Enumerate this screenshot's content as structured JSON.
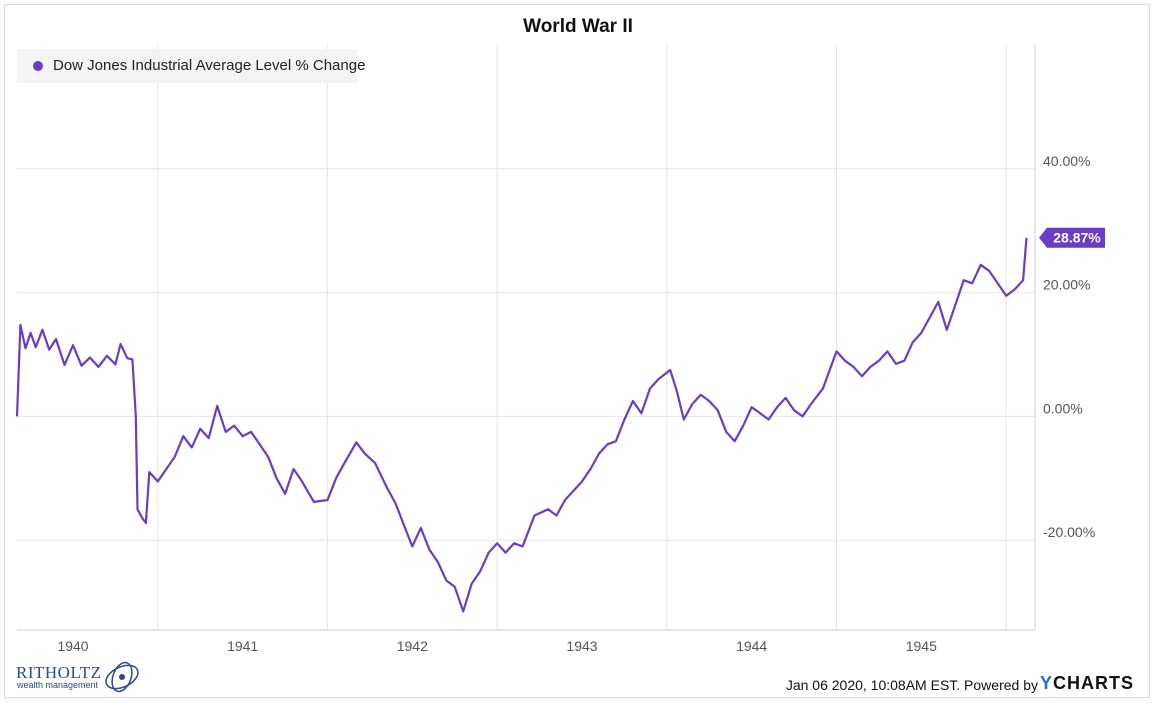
{
  "title": "World War II",
  "legend": {
    "label": "Dow Jones Industrial Average Level % Change"
  },
  "footer": {
    "brand_name": "RITHOLTZ",
    "brand_sub": "wealth management",
    "credit": "Jan 06 2020, 10:08AM EST. Powered by",
    "ycharts_y": "Y",
    "ycharts_rest": "CHARTS"
  },
  "colors": {
    "series": "#6a3cc7",
    "grid": "#e6e6e6",
    "axis_text": "#555555"
  },
  "chart_data": {
    "type": "line",
    "title": "World War II",
    "series": [
      {
        "name": "Dow Jones Industrial Average Level % Change",
        "color": "#6a3cc7",
        "last_value_label": "28.87%",
        "points": [
          [
            1939.67,
            0.0
          ],
          [
            1939.69,
            14.8
          ],
          [
            1939.72,
            11.0
          ],
          [
            1939.75,
            13.5
          ],
          [
            1939.78,
            11.2
          ],
          [
            1939.82,
            14.0
          ],
          [
            1939.86,
            10.8
          ],
          [
            1939.9,
            12.5
          ],
          [
            1939.95,
            8.3
          ],
          [
            1940.0,
            11.5
          ],
          [
            1940.05,
            8.2
          ],
          [
            1940.1,
            9.5
          ],
          [
            1940.15,
            8.0
          ],
          [
            1940.2,
            9.8
          ],
          [
            1940.25,
            8.4
          ],
          [
            1940.28,
            11.7
          ],
          [
            1940.32,
            9.4
          ],
          [
            1940.35,
            9.2
          ],
          [
            1940.37,
            0.0
          ],
          [
            1940.38,
            -15.0
          ],
          [
            1940.41,
            -16.5
          ],
          [
            1940.43,
            -17.2
          ],
          [
            1940.45,
            -9.0
          ],
          [
            1940.5,
            -10.5
          ],
          [
            1940.55,
            -8.5
          ],
          [
            1940.6,
            -6.5
          ],
          [
            1940.65,
            -3.2
          ],
          [
            1940.7,
            -5.0
          ],
          [
            1940.75,
            -2.0
          ],
          [
            1940.8,
            -3.5
          ],
          [
            1940.85,
            1.7
          ],
          [
            1940.9,
            -2.5
          ],
          [
            1940.95,
            -1.5
          ],
          [
            1941.0,
            -3.2
          ],
          [
            1941.05,
            -2.5
          ],
          [
            1941.1,
            -4.5
          ],
          [
            1941.15,
            -6.5
          ],
          [
            1941.2,
            -10.0
          ],
          [
            1941.25,
            -12.5
          ],
          [
            1941.3,
            -8.5
          ],
          [
            1941.35,
            -10.5
          ],
          [
            1941.42,
            -13.8
          ],
          [
            1941.5,
            -13.5
          ],
          [
            1941.55,
            -10.0
          ],
          [
            1941.6,
            -7.5
          ],
          [
            1941.67,
            -4.2
          ],
          [
            1941.72,
            -6.0
          ],
          [
            1941.78,
            -7.5
          ],
          [
            1941.85,
            -11.5
          ],
          [
            1941.9,
            -14.0
          ],
          [
            1941.95,
            -17.5
          ],
          [
            1942.0,
            -21.0
          ],
          [
            1942.05,
            -18.0
          ],
          [
            1942.1,
            -21.5
          ],
          [
            1942.15,
            -23.5
          ],
          [
            1942.2,
            -26.5
          ],
          [
            1942.25,
            -27.5
          ],
          [
            1942.3,
            -31.5
          ],
          [
            1942.35,
            -27.0
          ],
          [
            1942.4,
            -25.0
          ],
          [
            1942.45,
            -22.0
          ],
          [
            1942.5,
            -20.5
          ],
          [
            1942.55,
            -22.0
          ],
          [
            1942.6,
            -20.5
          ],
          [
            1942.65,
            -21.0
          ],
          [
            1942.72,
            -16.0
          ],
          [
            1942.8,
            -15.0
          ],
          [
            1942.85,
            -16.0
          ],
          [
            1942.9,
            -13.5
          ],
          [
            1942.95,
            -12.0
          ],
          [
            1943.0,
            -10.5
          ],
          [
            1943.05,
            -8.5
          ],
          [
            1943.1,
            -6.0
          ],
          [
            1943.15,
            -4.5
          ],
          [
            1943.2,
            -4.0
          ],
          [
            1943.25,
            -0.5
          ],
          [
            1943.3,
            2.5
          ],
          [
            1943.35,
            0.5
          ],
          [
            1943.4,
            4.5
          ],
          [
            1943.45,
            6.0
          ],
          [
            1943.52,
            7.5
          ],
          [
            1943.56,
            4.0
          ],
          [
            1943.6,
            -0.5
          ],
          [
            1943.65,
            2.0
          ],
          [
            1943.7,
            3.5
          ],
          [
            1943.75,
            2.5
          ],
          [
            1943.8,
            1.0
          ],
          [
            1943.85,
            -2.5
          ],
          [
            1943.9,
            -4.0
          ],
          [
            1943.95,
            -1.5
          ],
          [
            1944.0,
            1.5
          ],
          [
            1944.05,
            0.5
          ],
          [
            1944.1,
            -0.5
          ],
          [
            1944.15,
            1.5
          ],
          [
            1944.2,
            3.0
          ],
          [
            1944.25,
            1.0
          ],
          [
            1944.3,
            0.0
          ],
          [
            1944.35,
            2.0
          ],
          [
            1944.42,
            4.5
          ],
          [
            1944.5,
            10.5
          ],
          [
            1944.55,
            9.0
          ],
          [
            1944.6,
            8.0
          ],
          [
            1944.65,
            6.5
          ],
          [
            1944.7,
            8.0
          ],
          [
            1944.75,
            9.0
          ],
          [
            1944.8,
            10.5
          ],
          [
            1944.85,
            8.5
          ],
          [
            1944.9,
            9.0
          ],
          [
            1944.95,
            12.0
          ],
          [
            1945.0,
            13.5
          ],
          [
            1945.05,
            16.0
          ],
          [
            1945.1,
            18.5
          ],
          [
            1945.15,
            14.0
          ],
          [
            1945.2,
            18.0
          ],
          [
            1945.25,
            22.0
          ],
          [
            1945.3,
            21.5
          ],
          [
            1945.35,
            24.5
          ],
          [
            1945.4,
            23.5
          ],
          [
            1945.45,
            21.5
          ],
          [
            1945.5,
            19.5
          ],
          [
            1945.55,
            20.5
          ],
          [
            1945.6,
            22.0
          ],
          [
            1945.62,
            28.87
          ]
        ]
      }
    ],
    "x_ticks": [
      "1940",
      "1941",
      "1942",
      "1943",
      "1944",
      "1945"
    ],
    "y_ticks": [
      "40.00%",
      "20.00%",
      "0.00%",
      "-20.00%"
    ],
    "y_tick_values": [
      40,
      20,
      0,
      -20
    ],
    "xlim": [
      1939.67,
      1945.67
    ],
    "ylim": [
      -34.5,
      60
    ],
    "grid": true,
    "legend_position": "top-left"
  }
}
